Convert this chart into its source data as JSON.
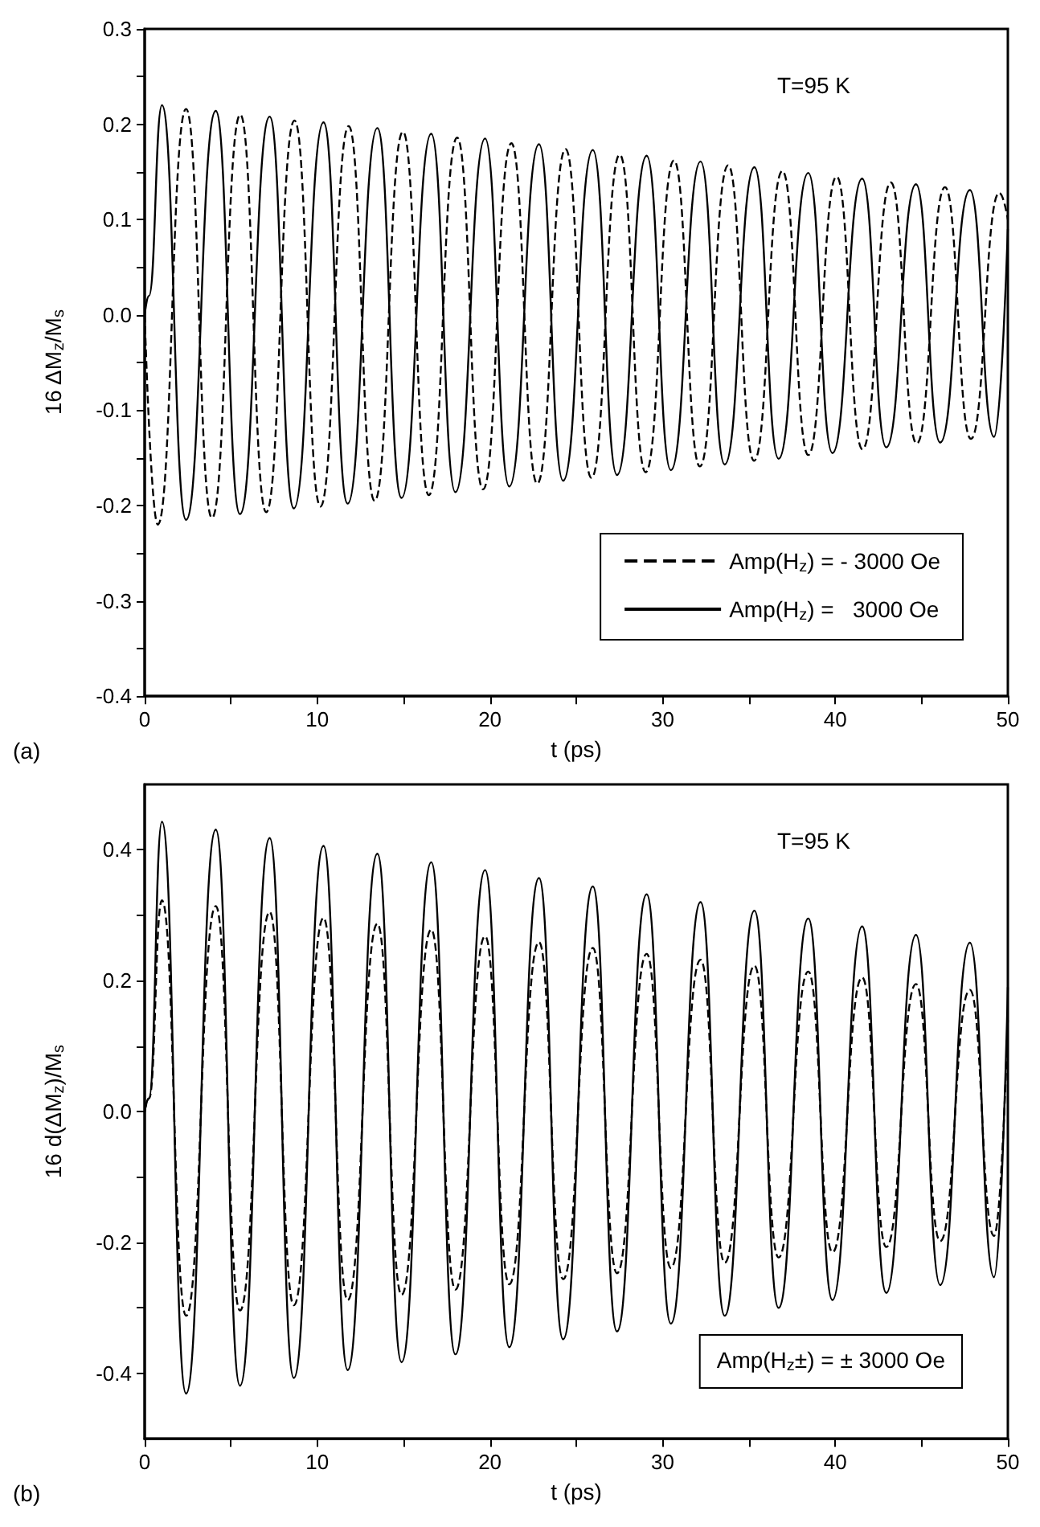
{
  "chart_data": [
    {
      "type": "line",
      "ylabel": "16 ΔM$_{z}$/M$_{s}$",
      "xlabel": "t (ps)",
      "annotations": [
        "T=95 K",
        "(a)"
      ],
      "xlim": [
        0,
        50
      ],
      "ylim": [
        -0.4,
        0.3
      ],
      "xticks": [
        0,
        {
          "value": 5,
          "label": null
        },
        10,
        {
          "value": 15,
          "label": null
        },
        20,
        {
          "value": 25,
          "label": null
        },
        30,
        {
          "value": 35,
          "label": null
        },
        40,
        {
          "value": 45,
          "label": null
        },
        50
      ],
      "yticks": [
        {
          "value": -0.4,
          "label": "-0.4"
        },
        {
          "value": -0.35,
          "label": null
        },
        {
          "value": -0.3,
          "label": "-0.3"
        },
        {
          "value": -0.25,
          "label": null
        },
        {
          "value": -0.2,
          "label": "-0.2"
        },
        {
          "value": -0.15,
          "label": null
        },
        {
          "value": -0.1,
          "label": "-0.1"
        },
        {
          "value": -0.05,
          "label": null
        },
        {
          "value": 0,
          "label": "0.0"
        },
        {
          "value": 0.05,
          "label": null
        },
        {
          "value": 0.1,
          "label": "0.1"
        },
        {
          "value": 0.15,
          "label": null
        },
        {
          "value": 0.2,
          "label": "0.2"
        },
        {
          "value": 0.25,
          "label": null
        },
        {
          "value": 0.3,
          "label": "0.3"
        }
      ],
      "legend": "bottom right",
      "grid": false,
      "marker": "none",
      "series": [
        {
          "name": "Amp(H$_{z}$) = - 3000 Oe",
          "color": "#000000",
          "line_style": "dashed",
          "x": [
            0,
            0.76,
            2.4,
            3.9,
            5.54,
            7.04,
            8.68,
            10.18,
            11.82,
            13.32,
            14.96,
            16.46,
            18.1,
            19.6,
            21.24,
            22.74,
            24.38,
            25.88,
            27.52,
            29.02,
            30.66,
            32.16,
            33.8,
            35.3,
            36.94,
            38.44,
            40.08,
            41.58,
            43.22,
            44.72,
            46.36,
            47.86,
            49.5,
            50
          ],
          "values": [
            0,
            -0.22,
            0.216,
            -0.213,
            0.21,
            -0.207,
            0.204,
            -0.201,
            0.198,
            -0.195,
            0.192,
            -0.189,
            0.186,
            -0.183,
            0.18,
            -0.177,
            0.174,
            -0.171,
            0.168,
            -0.165,
            0.162,
            -0.159,
            0.157,
            -0.153,
            0.151,
            -0.147,
            0.145,
            -0.141,
            0.139,
            -0.135,
            0.134,
            -0.13,
            0.128,
            0.1
          ]
        },
        {
          "name": "Amp(H$_{z}$) =   3000 Oe",
          "color": "#000000",
          "line_style": "solid",
          "x": [
            0,
            0.25,
            1.0,
            2.4,
            4.12,
            5.52,
            7.24,
            8.64,
            10.36,
            11.76,
            13.48,
            14.88,
            16.6,
            18.0,
            19.72,
            21.12,
            22.84,
            24.24,
            25.96,
            27.36,
            29.08,
            30.48,
            32.2,
            33.6,
            35.32,
            36.72,
            38.44,
            39.84,
            41.56,
            42.96,
            44.68,
            46.08,
            47.8,
            49.2,
            50
          ],
          "values": [
            0,
            0.02,
            0.22,
            -0.215,
            0.214,
            -0.209,
            0.208,
            -0.203,
            0.202,
            -0.198,
            0.196,
            -0.192,
            0.19,
            -0.186,
            0.185,
            -0.18,
            0.179,
            -0.174,
            0.173,
            -0.168,
            0.167,
            -0.163,
            0.161,
            -0.157,
            0.155,
            -0.151,
            0.149,
            -0.145,
            0.143,
            -0.139,
            0.137,
            -0.134,
            0.131,
            -0.128,
            0.09
          ]
        }
      ]
    },
    {
      "type": "line",
      "ylabel": "16 d(ΔM$_{z}$)/M$_{s}$",
      "xlabel": "t (ps)",
      "annotations": [
        "T=95 K",
        "(b)",
        "Amp(H$_{z}$±) = ± 3000 Oe"
      ],
      "xlim": [
        0,
        50
      ],
      "ylim": [
        -0.5,
        0.5
      ],
      "xticks": [
        0,
        {
          "value": 5,
          "label": null
        },
        10,
        {
          "value": 15,
          "label": null
        },
        20,
        {
          "value": 25,
          "label": null
        },
        30,
        {
          "value": 35,
          "label": null
        },
        40,
        {
          "value": 45,
          "label": null
        },
        50
      ],
      "yticks": [
        {
          "value": -0.4,
          "label": "-0.4"
        },
        {
          "value": -0.3,
          "label": null
        },
        {
          "value": -0.2,
          "label": "-0.2"
        },
        {
          "value": -0.1,
          "label": null
        },
        {
          "value": 0,
          "label": "0.0"
        },
        {
          "value": 0.1,
          "label": null
        },
        {
          "value": 0.2,
          "label": "0.2"
        },
        {
          "value": 0.3,
          "label": null
        },
        {
          "value": 0.4,
          "label": "0.4"
        }
      ],
      "legend": false,
      "grid": false,
      "marker": "none",
      "series": [
        {
          "color": "#000000",
          "line_style": "dashed",
          "x": [
            0,
            0.25,
            1.0,
            2.4,
            4.12,
            5.52,
            7.24,
            8.64,
            10.36,
            11.76,
            13.48,
            14.88,
            16.6,
            18.0,
            19.72,
            21.12,
            22.84,
            24.24,
            25.96,
            27.36,
            29.08,
            30.48,
            32.2,
            33.6,
            35.32,
            36.72,
            38.44,
            39.84,
            41.56,
            42.96,
            44.68,
            46.08,
            47.8,
            49.2,
            50
          ],
          "values": [
            0,
            0.02,
            0.323,
            -0.312,
            0.314,
            -0.304,
            0.305,
            -0.296,
            0.296,
            -0.288,
            0.287,
            -0.28,
            0.278,
            -0.272,
            0.268,
            -0.264,
            0.259,
            -0.256,
            0.25,
            -0.247,
            0.241,
            -0.239,
            0.232,
            -0.231,
            0.223,
            -0.223,
            0.214,
            -0.215,
            0.205,
            -0.207,
            0.195,
            -0.198,
            0.186,
            -0.19,
            0.14
          ]
        },
        {
          "color": "#000000",
          "line_style": "solid",
          "x": [
            0,
            0.25,
            1.0,
            2.4,
            4.12,
            5.52,
            7.24,
            8.64,
            10.36,
            11.76,
            13.48,
            14.88,
            16.6,
            18.0,
            19.72,
            21.12,
            22.84,
            24.24,
            25.96,
            27.36,
            29.08,
            30.48,
            32.2,
            33.6,
            35.32,
            36.72,
            38.44,
            39.84,
            41.56,
            42.96,
            44.68,
            46.08,
            47.8,
            49.2,
            50
          ],
          "values": [
            0,
            0.02,
            0.443,
            -0.431,
            0.431,
            -0.419,
            0.418,
            -0.407,
            0.406,
            -0.395,
            0.394,
            -0.383,
            0.381,
            -0.371,
            0.369,
            -0.36,
            0.357,
            -0.348,
            0.344,
            -0.336,
            0.332,
            -0.324,
            0.32,
            -0.312,
            0.307,
            -0.3,
            0.295,
            -0.288,
            0.283,
            -0.277,
            0.27,
            -0.265,
            0.258,
            -0.253,
            0.19
          ]
        }
      ]
    }
  ]
}
